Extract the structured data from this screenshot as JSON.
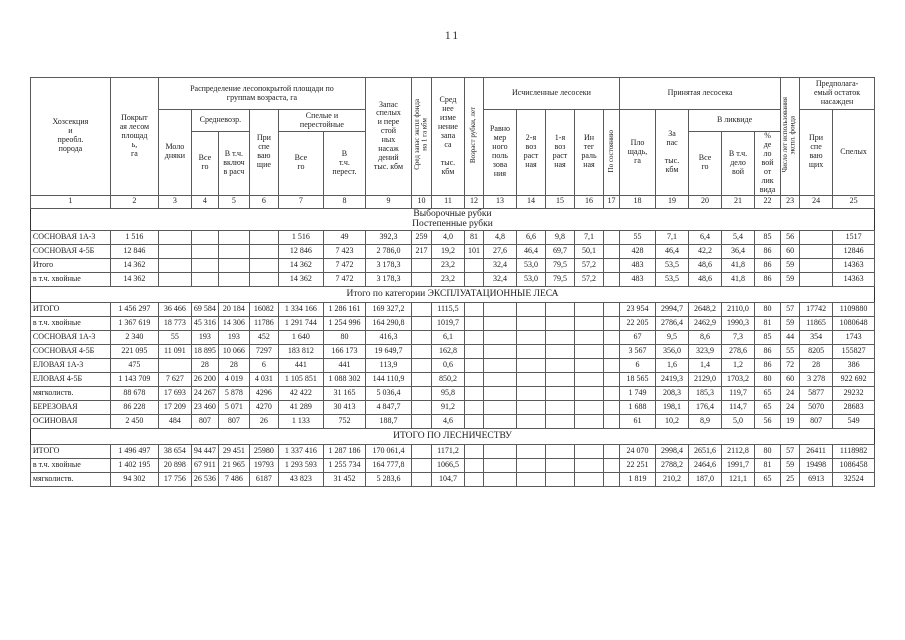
{
  "page": {
    "number": "11"
  },
  "table": {
    "header": {
      "c1": "Хозсекция\nи\nпреобл.\nпорода",
      "c2": "Покрыт\nая лесом\nплощад\nь,\nга",
      "groupA": "Распределение лесопокрытой площади по\nгруппам возраста,  га",
      "c3": "Моло\nдняки",
      "srednevozr": "Средневозр.",
      "c4": "Все\nго",
      "c5": "В т.ч.\nвключ\nв расч",
      "c6": "При\nспе\nваю\nщие",
      "spelye": "Спелые и\nперестойные",
      "c7": "Все\nго",
      "c8": "В\nт.ч.\nперест.",
      "c9": "Запас\nспелых\nи пере\nстой\nных\nнасаж\nдений\nтыс. кбм",
      "c10": "Сред запас экспл фонда\nна 1 га кбм",
      "c11": "Сред\nнее\nизме\nнение\nзапа\nса\n\nтыс.\nкбм",
      "c12": "Возраст рубки, лет",
      "groupB": "Исчисленные лесосеки",
      "c13": "Равно\nмер\nного\nполь\nзова\nния",
      "c14": "2-я\nвоз\nраст\nная",
      "c15": "1-я\nвоз\nраст\nная",
      "c16": "Ин\nтег\nраль\nная",
      "c17": "По состоянию",
      "groupC": "Принятая лесосека",
      "c18": "Пло\nщадь,\nга",
      "c19": "За\nпас\n\nтыс.\nкбм",
      "likvid": "В ликвиде",
      "c20": "Все\nго",
      "c21": "В т.ч.\nдело\nвой",
      "c22": "%\nде\nло\nвой\nот\nлик\nвида",
      "c23": "Число лет использования\nэкспл. фонда",
      "groupD": "Предполага-\nемый остаток\nнасажден",
      "c24": "При\nспе\nваю\nщих",
      "c25": "Спелых"
    },
    "col_numbers": [
      "1",
      "2",
      "3",
      "4",
      "5",
      "6",
      "7",
      "8",
      "9",
      "10",
      "11",
      "12",
      "13",
      "14",
      "15",
      "16",
      "17",
      "18",
      "19",
      "20",
      "21",
      "22",
      "23",
      "24",
      "25"
    ],
    "sections": [
      {
        "title": "Выборочные рубки\nПостепенные  рубки",
        "rows": [
          [
            "СОСНОВАЯ 1А-3",
            "1 516",
            "",
            "",
            "",
            "",
            "1 516",
            "49",
            "392,3",
            "259",
            "4,0",
            "81",
            "4,8",
            "6,6",
            "9,8",
            "7,1",
            "",
            "55",
            "7,1",
            "6,4",
            "5,4",
            "85",
            "56",
            "",
            "1517"
          ],
          [
            "СОСНОВАЯ  4-5Б",
            "12 846",
            "",
            "",
            "",
            "",
            "12 846",
            "7 423",
            "2 786,0",
            "217",
            "19,2",
            "101",
            "27,6",
            "46,4",
            "69,7",
            "50,1",
            "",
            "428",
            "46,4",
            "42,2",
            "36,4",
            "86",
            "60",
            "",
            "12846"
          ],
          [
            "Итого",
            "14 362",
            "",
            "",
            "",
            "",
            "14 362",
            "7 472",
            "3 178,3",
            "",
            "23,2",
            "",
            "32,4",
            "53,0",
            "79,5",
            "57,2",
            "",
            "483",
            "53,5",
            "48,6",
            "41,8",
            "86",
            "59",
            "",
            "14363"
          ],
          [
            "в т.ч. хвойные",
            "14 362",
            "",
            "",
            "",
            "",
            "14 362",
            "7 472",
            "3 178,3",
            "",
            "23,2",
            "",
            "32,4",
            "53,0",
            "79,5",
            "57,2",
            "",
            "483",
            "53,5",
            "48,6",
            "41,8",
            "86",
            "59",
            "",
            "14363"
          ]
        ]
      },
      {
        "title": "Итого по категории   ЭКСПЛУАТАЦИОННЫЕ ЛЕСА",
        "rows": [
          [
            "ИТОГО",
            "1 456 297",
            "36 466",
            "69 584",
            "20 184",
            "16082",
            "1 334 166",
            "1 286 161",
            "169 327,2",
            "",
            "1115,5",
            "",
            "",
            "",
            "",
            "",
            "",
            "23 954",
            "2994,7",
            "2648,2",
            "2110,0",
            "80",
            "57",
            "17742",
            "1109880"
          ],
          [
            "в т.ч. хвойные",
            "1 367 619",
            "18 773",
            "45 316",
            "14 306",
            "11786",
            "1 291 744",
            "1 254 996",
            "164 290,8",
            "",
            "1019,7",
            "",
            "",
            "",
            "",
            "",
            "",
            "22 205",
            "2786,4",
            "2462,9",
            "1990,3",
            "81",
            "59",
            "11865",
            "1080648"
          ],
          [
            "СОСНОВАЯ 1А-3",
            "2 340",
            "55",
            "193",
            "193",
            "452",
            "1 640",
            "80",
            "416,3",
            "",
            "6,1",
            "",
            "",
            "",
            "",
            "",
            "",
            "67",
            "9,5",
            "8,6",
            "7,3",
            "85",
            "44",
            "354",
            "1743"
          ],
          [
            "СОСНОВАЯ  4-5Б",
            "221 095",
            "11 091",
            "18 895",
            "10 066",
            "7297",
            "183 812",
            "166 173",
            "19 649,7",
            "",
            "162,8",
            "",
            "",
            "",
            "",
            "",
            "",
            "3 567",
            "356,0",
            "323,9",
            "278,6",
            "86",
            "55",
            "8205",
            "155827"
          ],
          [
            "ЕЛОВАЯ  1А-3",
            "475",
            "",
            "28",
            "28",
            "6",
            "441",
            "441",
            "113,9",
            "",
            "0,6",
            "",
            "",
            "",
            "",
            "",
            "",
            "6",
            "1,6",
            "1,4",
            "1,2",
            "86",
            "72",
            "28",
            "386"
          ],
          [
            "ЕЛОВАЯ  4-5Б",
            "1 143 709",
            "7 627",
            "26 200",
            "4 019",
            "4 031",
            "1 105 851",
            "1 088 302",
            "144 110,9",
            "",
            "850,2",
            "",
            "",
            "",
            "",
            "",
            "",
            "18 565",
            "2419,3",
            "2129,0",
            "1703,2",
            "80",
            "60",
            "3 278",
            "922 692"
          ],
          [
            "мягколиств.",
            "88 678",
            "17 693",
            "24 267",
            "5 878",
            "4296",
            "42 422",
            "31 165",
            "5 036,4",
            "",
            "95,8",
            "",
            "",
            "",
            "",
            "",
            "",
            "1 749",
            "208,3",
            "185,3",
            "119,7",
            "65",
            "24",
            "5877",
            "29232"
          ],
          [
            "БЕРЕЗОВАЯ",
            "86 228",
            "17 209",
            "23 460",
            "5 071",
            "4270",
            "41 289",
            "30 413",
            "4 847,7",
            "",
            "91,2",
            "",
            "",
            "",
            "",
            "",
            "",
            "1 688",
            "198,1",
            "176,4",
            "114,7",
            "65",
            "24",
            "5070",
            "28683"
          ],
          [
            "ОСИНОВАЯ",
            "2 450",
            "484",
            "807",
            "807",
            "26",
            "1 133",
            "752",
            "188,7",
            "",
            "4,6",
            "",
            "",
            "",
            "",
            "",
            "",
            "61",
            "10,2",
            "8,9",
            "5,0",
            "56",
            "19",
            "807",
            "549"
          ]
        ]
      },
      {
        "title": "ИТОГО ПО ЛЕСНИЧЕСТВУ",
        "rows": [
          [
            "ИТОГО",
            "1 496 497",
            "38 654",
            "94 447",
            "29 451",
            "25980",
            "1 337 416",
            "1 287 186",
            "170 061,4",
            "",
            "1171,2",
            "",
            "",
            "",
            "",
            "",
            "",
            "24 070",
            "2998,4",
            "2651,6",
            "2112,8",
            "80",
            "57",
            "26411",
            "1118982"
          ],
          [
            "в т.ч. хвойные",
            "1 402 195",
            "20 898",
            "67 911",
            "21 965",
            "19793",
            "1 293 593",
            "1 255 734",
            "164 777,8",
            "",
            "1066,5",
            "",
            "",
            "",
            "",
            "",
            "",
            "22 251",
            "2788,2",
            "2464,6",
            "1991,7",
            "81",
            "59",
            "19498",
            "1086458"
          ],
          [
            "мягколиств.",
            "94 302",
            "17 756",
            "26 536",
            "7 486",
            "6187",
            "43 823",
            "31 452",
            "5 283,6",
            "",
            "104,7",
            "",
            "",
            "",
            "",
            "",
            "",
            "1 819",
            "210,2",
            "187,0",
            "121,1",
            "65",
            "25",
            "6913",
            "32524"
          ]
        ]
      }
    ]
  }
}
